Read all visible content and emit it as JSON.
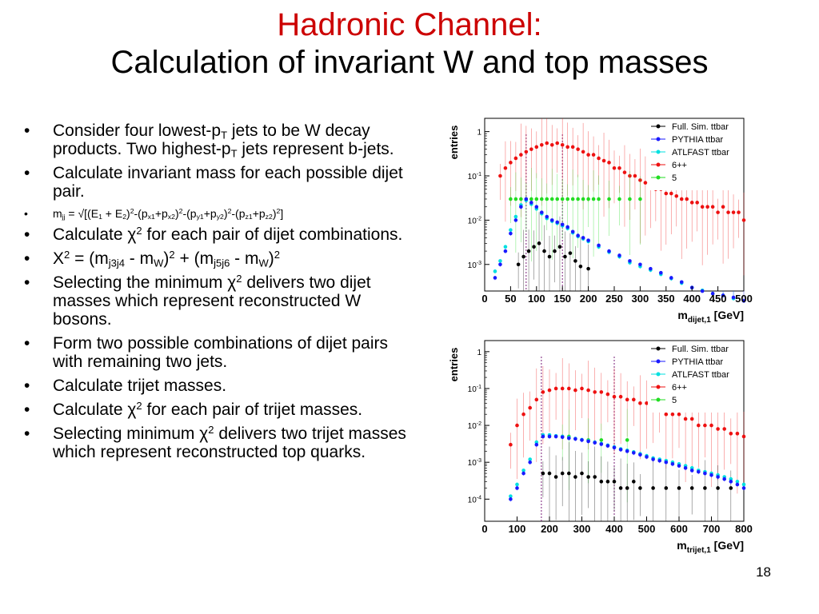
{
  "title": {
    "line1": "Hadronic Channel:",
    "line2": "Calculation of invariant W and top masses",
    "line1_color": "#cc0000"
  },
  "bullets": [
    {
      "parts": [
        {
          "t": "Consider four lowest-p"
        },
        {
          "sub": "T"
        },
        {
          "t": " jets to be W decay products.  Two highest-p"
        },
        {
          "sub": "T"
        },
        {
          "t": " jets represent b-jets."
        }
      ]
    },
    {
      "parts": [
        {
          "t": "Calculate invariant mass for each possible dijet pair."
        }
      ]
    },
    {
      "small": true,
      "parts": [
        {
          "t": "m"
        },
        {
          "sub": "jj"
        },
        {
          "t": " = √[(E"
        },
        {
          "sub": "1"
        },
        {
          "t": " + E"
        },
        {
          "sub": "2"
        },
        {
          "t": ")"
        },
        {
          "sup": "2"
        },
        {
          "t": "-(p"
        },
        {
          "sub": "x1"
        },
        {
          "t": "+p"
        },
        {
          "sub": "x2"
        },
        {
          "t": ")"
        },
        {
          "sup": "2"
        },
        {
          "t": "-(p"
        },
        {
          "sub": "y1"
        },
        {
          "t": "+p"
        },
        {
          "sub": "y2"
        },
        {
          "t": ")"
        },
        {
          "sup": "2"
        },
        {
          "t": "-(p"
        },
        {
          "sub": "z1"
        },
        {
          "t": "+p"
        },
        {
          "sub": "z2"
        },
        {
          "t": ")"
        },
        {
          "sup": "2"
        },
        {
          "t": "]"
        }
      ]
    },
    {
      "parts": [
        {
          "t": "Calculate χ"
        },
        {
          "sup": "2"
        },
        {
          "t": " for each pair of dijet combinations."
        }
      ]
    },
    {
      "parts": [
        {
          "t": "X"
        },
        {
          "sup": "2"
        },
        {
          "t": " = (m"
        },
        {
          "sub": "j3j4"
        },
        {
          "t": " - m"
        },
        {
          "sub": "W"
        },
        {
          "t": ")"
        },
        {
          "sup": "2"
        },
        {
          "t": " + (m"
        },
        {
          "sub": "j5j6"
        },
        {
          "t": " - m"
        },
        {
          "sub": "W"
        },
        {
          "t": ")"
        },
        {
          "sup": "2"
        }
      ]
    },
    {
      "parts": [
        {
          "t": "Selecting the minimum χ"
        },
        {
          "sup": "2"
        },
        {
          "t": " delivers two dijet masses which represent reconstructed W bosons."
        }
      ]
    },
    {
      "parts": [
        {
          "t": "Form two possible combinations of dijet pairs with remaining two jets."
        }
      ]
    },
    {
      "parts": [
        {
          "t": "Calculate trijet masses."
        }
      ]
    },
    {
      "parts": [
        {
          "t": "Calculate χ"
        },
        {
          "sup": "2"
        },
        {
          "t": " for each pair of trijet masses."
        }
      ]
    },
    {
      "parts": [
        {
          "t": "Selecting minimum χ"
        },
        {
          "sup": "2"
        },
        {
          "t": " delivers two trijet masses which represent reconstructed top quarks."
        }
      ]
    }
  ],
  "bullet_symbol": "•",
  "page_number": "18",
  "chart_data": [
    {
      "type": "scatter",
      "ylabel": "entries",
      "xlabel_main": "m",
      "xlabel_sub": "dijet,1",
      "xlabel_unit": "[GeV]",
      "xlim": [
        0,
        500
      ],
      "ylim_log10": [
        -3.6,
        0.3
      ],
      "x_ticks": [
        0,
        50,
        100,
        150,
        200,
        250,
        300,
        350,
        400,
        450,
        500
      ],
      "y_ticks": [
        {
          "label": "1",
          "exp": 0
        },
        {
          "label": "10",
          "sup": "-1",
          "exp": -1
        },
        {
          "label": "10",
          "sup": "-2",
          "exp": -2
        },
        {
          "label": "10",
          "sup": "-3",
          "exp": -3
        }
      ],
      "vlines": [
        80,
        150
      ],
      "vline_color": "#7a1f7a",
      "legend": [
        {
          "name": "Full. Sim. ttbar",
          "color": "#000000"
        },
        {
          "name": "PYTHIA ttbar",
          "color": "#1a1aff"
        },
        {
          "name": "ATLFAST ttbar",
          "color": "#00e0e0"
        },
        {
          "name": "6++",
          "color": "#ee1111"
        },
        {
          "name": "5",
          "color": "#22dd22"
        }
      ],
      "series": [
        {
          "name": "Full. Sim. ttbar",
          "color": "#000000",
          "x": [
            65,
            75,
            85,
            95,
            105,
            115,
            125,
            135,
            145,
            155,
            165,
            175,
            185,
            200
          ],
          "y": [
            0.001,
            0.0015,
            0.002,
            0.0025,
            0.003,
            0.002,
            0.0015,
            0.002,
            0.0025,
            0.0015,
            0.0018,
            0.0012,
            0.0009,
            0.0008
          ]
        },
        {
          "name": "PYTHIA ttbar",
          "color": "#1a1aff",
          "x": [
            20,
            30,
            40,
            50,
            60,
            70,
            80,
            90,
            100,
            110,
            120,
            130,
            140,
            150,
            160,
            170,
            180,
            190,
            200,
            220,
            240,
            260,
            280,
            300,
            320,
            340,
            360,
            380,
            400,
            420,
            440,
            460,
            480,
            500
          ],
          "y": [
            0.0005,
            0.001,
            0.002,
            0.005,
            0.01,
            0.02,
            0.03,
            0.025,
            0.02,
            0.015,
            0.012,
            0.01,
            0.009,
            0.008,
            0.007,
            0.0055,
            0.0045,
            0.004,
            0.0035,
            0.0027,
            0.002,
            0.0016,
            0.0012,
            0.001,
            0.0008,
            0.00065,
            0.0005,
            0.0004,
            0.0003,
            0.00025,
            0.00022,
            0.0002,
            0.00018,
            0.00015
          ]
        },
        {
          "name": "ATLFAST ttbar",
          "color": "#00e0e0",
          "x": [
            20,
            30,
            40,
            50,
            60,
            70,
            80,
            90,
            100,
            110,
            120,
            130,
            140,
            150,
            160,
            170,
            180,
            190,
            200,
            220,
            240,
            260,
            280,
            300,
            320,
            340,
            360,
            380,
            400,
            420,
            440,
            460,
            480
          ],
          "y": [
            0.0007,
            0.0012,
            0.0025,
            0.006,
            0.012,
            0.022,
            0.028,
            0.023,
            0.018,
            0.014,
            0.011,
            0.0095,
            0.0085,
            0.0075,
            0.0065,
            0.0052,
            0.0043,
            0.0038,
            0.0033,
            0.0025,
            0.0019,
            0.0015,
            0.0011,
            0.0009,
            0.00075,
            0.0006,
            0.00048,
            0.00038,
            0.0003,
            0.00026,
            0.00022,
            0.0002,
            0.00017
          ]
        },
        {
          "name": "6++",
          "color": "#ee1111",
          "x": [
            30,
            40,
            50,
            60,
            70,
            80,
            90,
            100,
            110,
            120,
            130,
            140,
            150,
            160,
            170,
            180,
            190,
            200,
            210,
            220,
            230,
            240,
            250,
            260,
            270,
            280,
            290,
            300,
            310,
            320,
            330,
            340,
            350,
            360,
            370,
            380,
            390,
            400,
            410,
            420,
            430,
            440,
            450,
            460,
            470,
            480,
            490,
            500
          ],
          "y": [
            0.1,
            0.15,
            0.2,
            0.25,
            0.3,
            0.35,
            0.4,
            0.45,
            0.5,
            0.55,
            0.5,
            0.55,
            0.5,
            0.45,
            0.45,
            0.4,
            0.35,
            0.3,
            0.3,
            0.25,
            0.22,
            0.2,
            0.15,
            0.15,
            0.12,
            0.1,
            0.1,
            0.08,
            0.07,
            0.06,
            0.05,
            0.05,
            0.04,
            0.04,
            0.035,
            0.03,
            0.03,
            0.025,
            0.025,
            0.02,
            0.02,
            0.02,
            0.015,
            0.02,
            0.015,
            0.015,
            0.015,
            0.01
          ]
        },
        {
          "name": "5",
          "color": "#22dd22",
          "x": [
            50,
            60,
            70,
            80,
            90,
            100,
            110,
            120,
            130,
            140,
            150,
            160,
            170,
            180,
            190,
            200,
            210,
            220,
            240,
            260,
            280,
            300
          ],
          "y": [
            0.03,
            0.03,
            0.03,
            0.03,
            0.03,
            0.03,
            0.03,
            0.03,
            0.03,
            0.03,
            0.03,
            0.03,
            0.03,
            0.03,
            0.03,
            0.03,
            0.03,
            0.03,
            0.03,
            0.03,
            0.03,
            0.03
          ]
        }
      ]
    },
    {
      "type": "scatter",
      "ylabel": "entries",
      "xlabel_main": "m",
      "xlabel_sub": "trijet,1",
      "xlabel_unit": "[GeV]",
      "xlim": [
        0,
        800
      ],
      "ylim_log10": [
        -4.6,
        0.3
      ],
      "x_ticks": [
        0,
        100,
        200,
        300,
        400,
        500,
        600,
        700,
        800
      ],
      "y_ticks": [
        {
          "label": "1",
          "exp": 0
        },
        {
          "label": "10",
          "sup": "-1",
          "exp": -1
        },
        {
          "label": "10",
          "sup": "-2",
          "exp": -2
        },
        {
          "label": "10",
          "sup": "-3",
          "exp": -3
        },
        {
          "label": "10",
          "sup": "-4",
          "exp": -4
        }
      ],
      "vlines": [
        175,
        400
      ],
      "vline_color": "#7a1f7a",
      "legend": [
        {
          "name": "Full. Sim. ttbar",
          "color": "#000000"
        },
        {
          "name": "PYTHIA ttbar",
          "color": "#1a1aff"
        },
        {
          "name": "ATLFAST ttbar",
          "color": "#00e0e0"
        },
        {
          "name": "6++",
          "color": "#ee1111"
        },
        {
          "name": "5",
          "color": "#22dd22"
        }
      ],
      "series": [
        {
          "name": "Full. Sim. ttbar",
          "color": "#000000",
          "x": [
            180,
            200,
            220,
            240,
            260,
            280,
            300,
            320,
            340,
            360,
            380,
            400,
            420,
            440,
            460,
            480,
            520,
            560,
            600,
            640,
            680,
            720,
            760
          ],
          "y": [
            0.0005,
            0.0005,
            0.0004,
            0.0005,
            0.0005,
            0.0004,
            0.0005,
            0.0004,
            0.0004,
            0.0003,
            0.0003,
            0.0003,
            0.0002,
            0.0002,
            0.0003,
            0.0002,
            0.0002,
            0.0002,
            0.0002,
            0.0002,
            0.0002,
            0.0002,
            0.0002
          ]
        },
        {
          "name": "PYTHIA ttbar",
          "color": "#1a1aff",
          "x": [
            80,
            100,
            120,
            140,
            160,
            180,
            200,
            220,
            240,
            260,
            280,
            300,
            320,
            340,
            360,
            380,
            400,
            420,
            440,
            460,
            480,
            500,
            520,
            540,
            560,
            580,
            600,
            620,
            640,
            660,
            680,
            700,
            720,
            740,
            760,
            780,
            800
          ],
          "y": [
            0.0001,
            0.0002,
            0.0005,
            0.001,
            0.003,
            0.005,
            0.005,
            0.005,
            0.0048,
            0.0045,
            0.0043,
            0.004,
            0.0037,
            0.0034,
            0.0031,
            0.0028,
            0.0025,
            0.0022,
            0.002,
            0.0018,
            0.0016,
            0.0014,
            0.0012,
            0.0011,
            0.001,
            0.0009,
            0.0008,
            0.0007,
            0.0006,
            0.00055,
            0.0005,
            0.00045,
            0.0004,
            0.00035,
            0.0003,
            0.00025,
            0.0002
          ]
        },
        {
          "name": "ATLFAST ttbar",
          "color": "#00e0e0",
          "x": [
            80,
            100,
            120,
            140,
            160,
            180,
            200,
            220,
            240,
            260,
            280,
            300,
            320,
            340,
            360,
            380,
            400,
            420,
            440,
            460,
            480,
            500,
            520,
            540,
            560,
            580,
            600,
            620,
            640,
            660,
            680,
            700,
            720,
            740,
            760,
            780,
            800
          ],
          "y": [
            0.00012,
            0.00025,
            0.0006,
            0.0012,
            0.0035,
            0.0055,
            0.0055,
            0.0052,
            0.005,
            0.0047,
            0.0044,
            0.0041,
            0.0038,
            0.0035,
            0.0032,
            0.0029,
            0.0026,
            0.0023,
            0.0021,
            0.0019,
            0.0017,
            0.0015,
            0.0013,
            0.0012,
            0.0011,
            0.001,
            0.0009,
            0.0008,
            0.0007,
            0.0006,
            0.00055,
            0.0005,
            0.00045,
            0.0004,
            0.00035,
            0.0003,
            0.00025
          ]
        },
        {
          "name": "6++",
          "color": "#ee1111",
          "x": [
            80,
            100,
            120,
            140,
            160,
            180,
            200,
            220,
            240,
            260,
            280,
            300,
            320,
            340,
            360,
            380,
            400,
            420,
            440,
            460,
            480,
            500,
            520,
            540,
            560,
            580,
            600,
            620,
            640,
            660,
            680,
            700,
            720,
            740,
            760,
            780,
            800
          ],
          "y": [
            0.003,
            0.01,
            0.02,
            0.03,
            0.05,
            0.08,
            0.09,
            0.1,
            0.1,
            0.1,
            0.09,
            0.1,
            0.09,
            0.08,
            0.08,
            0.07,
            0.06,
            0.06,
            0.05,
            0.05,
            0.04,
            0.04,
            0.03,
            0.03,
            0.02,
            0.02,
            0.02,
            0.015,
            0.015,
            0.01,
            0.01,
            0.01,
            0.008,
            0.008,
            0.006,
            0.006,
            0.005
          ]
        },
        {
          "name": "5",
          "color": "#22dd22",
          "x": [
            240,
            260,
            320,
            360,
            440
          ],
          "y": [
            0.005,
            0.005,
            0.004,
            0.004,
            0.004
          ]
        }
      ]
    }
  ]
}
